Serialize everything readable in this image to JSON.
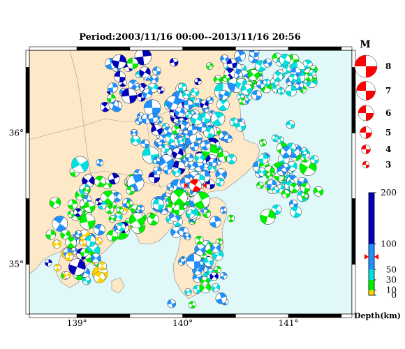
{
  "title": "Period:2003/11/16 00:00--2013/11/16 20:56",
  "map": {
    "lon_range": [
      138.55,
      141.6
    ],
    "lat_range": [
      34.62,
      36.63
    ],
    "x_ticks": [
      {
        "value": 139,
        "label": "139°"
      },
      {
        "value": 140,
        "label": "140°"
      },
      {
        "value": 141,
        "label": "141°"
      }
    ],
    "y_ticks": [
      {
        "value": 36,
        "label": "36°"
      },
      {
        "value": 35,
        "label": "35°"
      }
    ],
    "colors": {
      "sea": "#e0f8f8",
      "land": "#fde9c8",
      "frame": "#000000"
    }
  },
  "magnitude_legend": {
    "title": "M",
    "items": [
      "8",
      "7",
      "6",
      "5",
      "4",
      "3"
    ],
    "color": "#ff0000"
  },
  "depth_scale": {
    "label": "Depth(km)",
    "ticks": [
      "200",
      "100",
      "50",
      "30",
      "10",
      "0"
    ],
    "marker_value": 75,
    "colors": {
      "0-10": "#ffd400",
      "10-30": "#00ee00",
      "30-50": "#00e0e0",
      "50-100": "#1e90ff",
      "100-200": "#0000bb"
    }
  },
  "highlight_event": {
    "lon": 140.12,
    "lat": 35.6,
    "color": "#ff0000"
  }
}
